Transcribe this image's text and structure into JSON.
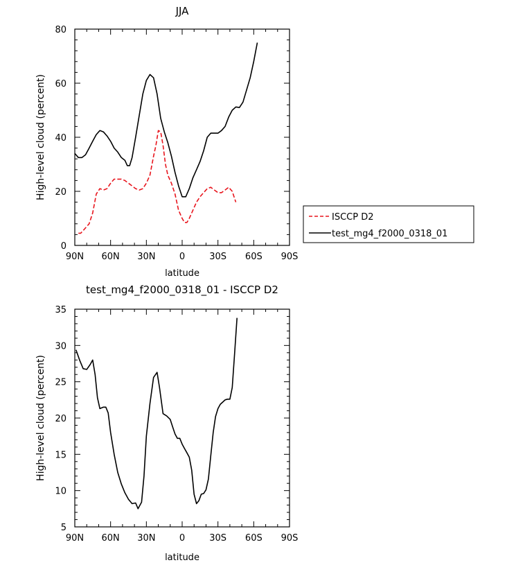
{
  "chart_data": [
    {
      "type": "line",
      "title": "JJA",
      "xlabel": "latitude",
      "ylabel": "High-level cloud (percent)",
      "xlim": [
        -90,
        90
      ],
      "ylim": [
        0,
        80
      ],
      "x_ticks": [
        -90,
        -60,
        -30,
        0,
        30,
        60,
        90
      ],
      "x_tick_labels": [
        "90N",
        "60N",
        "30N",
        "0",
        "30S",
        "60S",
        "90S"
      ],
      "y_ticks": [
        0,
        20,
        40,
        60,
        80
      ],
      "y_tick_labels": [
        "0",
        "20",
        "40",
        "60",
        "80"
      ],
      "legend_position": "right",
      "series": [
        {
          "name": "ISCCP D2",
          "color": "#e8141c",
          "dash": "dashed",
          "points": [
            [
              -87,
              4.5
            ],
            [
              -85,
              4.5
            ],
            [
              -82,
              6
            ],
            [
              -78,
              8
            ],
            [
              -75,
              12
            ],
            [
              -72,
              19
            ],
            [
              -69,
              21
            ],
            [
              -66,
              20.5
            ],
            [
              -63,
              21
            ],
            [
              -60,
              23
            ],
            [
              -57,
              24.5
            ],
            [
              -54,
              24.5
            ],
            [
              -51,
              24.5
            ],
            [
              -48,
              24
            ],
            [
              -45,
              23
            ],
            [
              -42,
              22
            ],
            [
              -39,
              21
            ],
            [
              -36,
              20.5
            ],
            [
              -33,
              21
            ],
            [
              -30,
              23
            ],
            [
              -27,
              26
            ],
            [
              -24,
              33
            ],
            [
              -22,
              37
            ],
            [
              -20,
              42.5
            ],
            [
              -18,
              42
            ],
            [
              -16,
              37
            ],
            [
              -14,
              30
            ],
            [
              -12,
              26
            ],
            [
              -9,
              23
            ],
            [
              -6,
              19
            ],
            [
              -3,
              13
            ],
            [
              0,
              10
            ],
            [
              2,
              8.5
            ],
            [
              4,
              8.5
            ],
            [
              6,
              10
            ],
            [
              9,
              13
            ],
            [
              12,
              16
            ],
            [
              15,
              18
            ],
            [
              18,
              19.5
            ],
            [
              21,
              21
            ],
            [
              24,
              21.5
            ],
            [
              27,
              20.5
            ],
            [
              30,
              19.5
            ],
            [
              33,
              19.5
            ],
            [
              36,
              20.5
            ],
            [
              39,
              21.5
            ],
            [
              42,
              20
            ],
            [
              45,
              16
            ]
          ]
        },
        {
          "name": "test_mg4_f2000_0318_01",
          "color": "#000000",
          "dash": "solid",
          "points": [
            [
              -90,
              34
            ],
            [
              -87,
              32.5
            ],
            [
              -84,
              32.5
            ],
            [
              -81,
              33.5
            ],
            [
              -78,
              36
            ],
            [
              -75,
              38.5
            ],
            [
              -72,
              41
            ],
            [
              -69,
              42.5
            ],
            [
              -66,
              42
            ],
            [
              -63,
              40.5
            ],
            [
              -60,
              38.5
            ],
            [
              -57,
              36
            ],
            [
              -54,
              34.5
            ],
            [
              -51,
              32.5
            ],
            [
              -48,
              31.5
            ],
            [
              -46,
              29.5
            ],
            [
              -44,
              29.5
            ],
            [
              -42,
              32.5
            ],
            [
              -39,
              40
            ],
            [
              -36,
              48
            ],
            [
              -33,
              56
            ],
            [
              -30,
              61
            ],
            [
              -27,
              63.2
            ],
            [
              -24,
              62
            ],
            [
              -21,
              56
            ],
            [
              -18,
              47
            ],
            [
              -15,
              42
            ],
            [
              -12,
              38
            ],
            [
              -9,
              33
            ],
            [
              -6,
              27
            ],
            [
              -3,
              22
            ],
            [
              0,
              18
            ],
            [
              3,
              18
            ],
            [
              6,
              21
            ],
            [
              9,
              25
            ],
            [
              12,
              28
            ],
            [
              15,
              31
            ],
            [
              18,
              35
            ],
            [
              21,
              40
            ],
            [
              24,
              41.5
            ],
            [
              27,
              41.5
            ],
            [
              30,
              41.5
            ],
            [
              33,
              42.5
            ],
            [
              36,
              44
            ],
            [
              39,
              47.5
            ],
            [
              42,
              50
            ],
            [
              45,
              51.2
            ],
            [
              48,
              51
            ],
            [
              51,
              53
            ],
            [
              54,
              57.5
            ],
            [
              57,
              62
            ],
            [
              60,
              68
            ],
            [
              63,
              75
            ]
          ]
        }
      ]
    },
    {
      "type": "line",
      "title": "test_mg4_f2000_0318_01 - ISCCP D2",
      "xlabel": "latitude",
      "ylabel": "High-level cloud (percent)",
      "xlim": [
        -90,
        90
      ],
      "ylim": [
        5,
        35
      ],
      "x_ticks": [
        -90,
        -60,
        -30,
        0,
        30,
        60,
        90
      ],
      "x_tick_labels": [
        "90N",
        "60N",
        "30N",
        "0",
        "30S",
        "60S",
        "90S"
      ],
      "y_ticks": [
        5,
        10,
        15,
        20,
        25,
        30,
        35
      ],
      "y_tick_labels": [
        "5",
        "10",
        "15",
        "20",
        "25",
        "30",
        "35"
      ],
      "series": [
        {
          "name": "",
          "color": "#000000",
          "dash": "solid",
          "points": [
            [
              -89,
              29.4
            ],
            [
              -86,
              28
            ],
            [
              -83,
              26.8
            ],
            [
              -80,
              26.7
            ],
            [
              -77,
              27.4
            ],
            [
              -75,
              28
            ],
            [
              -73,
              26
            ],
            [
              -71,
              22.8
            ],
            [
              -69,
              21.3
            ],
            [
              -66,
              21.5
            ],
            [
              -64,
              21.5
            ],
            [
              -62,
              20.7
            ],
            [
              -60,
              18
            ],
            [
              -57,
              15
            ],
            [
              -54,
              12.5
            ],
            [
              -51,
              10.9
            ],
            [
              -48,
              9.7
            ],
            [
              -45,
              8.8
            ],
            [
              -42,
              8.2
            ],
            [
              -39,
              8.3
            ],
            [
              -37,
              7.5
            ],
            [
              -34,
              8.4
            ],
            [
              -32,
              12
            ],
            [
              -30,
              17.5
            ],
            [
              -27,
              22
            ],
            [
              -24,
              25.6
            ],
            [
              -21,
              26.3
            ],
            [
              -19,
              24.2
            ],
            [
              -16,
              20.6
            ],
            [
              -13,
              20.3
            ],
            [
              -10,
              19.8
            ],
            [
              -8,
              18.8
            ],
            [
              -6,
              17.8
            ],
            [
              -4,
              17.2
            ],
            [
              -2,
              17.2
            ],
            [
              0,
              16.4
            ],
            [
              2,
              15.8
            ],
            [
              4,
              15.2
            ],
            [
              6,
              14.6
            ],
            [
              8,
              12.8
            ],
            [
              10,
              9.5
            ],
            [
              12,
              8.2
            ],
            [
              14,
              8.6
            ],
            [
              16,
              9.5
            ],
            [
              18,
              9.6
            ],
            [
              20,
              10.1
            ],
            [
              22,
              11.6
            ],
            [
              24,
              14.8
            ],
            [
              26,
              18
            ],
            [
              28,
              20.2
            ],
            [
              30,
              21.3
            ],
            [
              32,
              21.9
            ],
            [
              34,
              22.2
            ],
            [
              36,
              22.5
            ],
            [
              38,
              22.6
            ],
            [
              40,
              22.6
            ],
            [
              42,
              24.2
            ],
            [
              44,
              29
            ],
            [
              46,
              33.8
            ]
          ]
        }
      ]
    }
  ]
}
